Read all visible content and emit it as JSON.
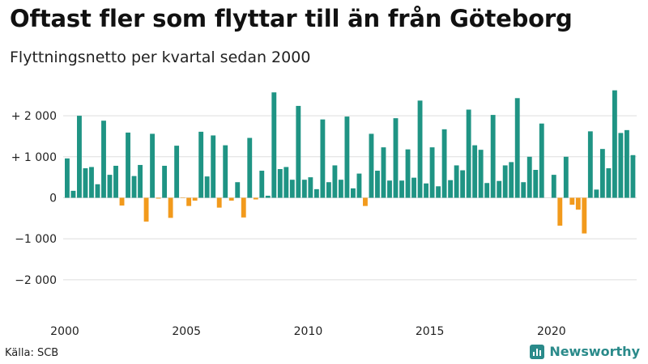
{
  "title": "Oftast fler som flyttar till än från Göteborg",
  "subtitle": "Flyttningsnetto per kvartal sedan 2000",
  "source": "Källa: SCB",
  "brand": "Newsworthy",
  "icons": {
    "brand": "bar-chart-logo-icon"
  },
  "colors": {
    "positive": "#1f9484",
    "negative": "#f29a1c",
    "grid": "#dddddd",
    "axis_text": "#222222"
  },
  "chart_data": {
    "type": "bar",
    "title": "Oftast fler som flyttar till än från Göteborg",
    "subtitle": "Flyttningsnetto per kvartal sedan 2000",
    "xlabel": "",
    "ylabel": "",
    "ylim": [
      -2500,
      2700
    ],
    "yticks": [
      {
        "value": 2000,
        "label": "+ 2 000"
      },
      {
        "value": 1000,
        "label": "+ 1 000"
      },
      {
        "value": 0,
        "label": "0"
      },
      {
        "value": -1000,
        "label": "−1 000"
      },
      {
        "value": -2000,
        "label": "−2 000"
      }
    ],
    "xticks": [
      "2000",
      "2005",
      "2010",
      "2015",
      "2020"
    ],
    "start_year": 2000,
    "grid": true,
    "legend": "none",
    "values": [
      960,
      170,
      2000,
      720,
      750,
      330,
      1880,
      560,
      780,
      -190,
      1590,
      530,
      800,
      -580,
      1560,
      -20,
      780,
      -490,
      1270,
      -10,
      -200,
      -70,
      1610,
      520,
      1520,
      -240,
      1280,
      -70,
      380,
      -480,
      1460,
      -40,
      660,
      50,
      2570,
      700,
      750,
      440,
      2240,
      440,
      500,
      210,
      1910,
      380,
      790,
      440,
      1980,
      230,
      590,
      -200,
      1560,
      660,
      1230,
      420,
      1940,
      420,
      1180,
      490,
      2370,
      350,
      1230,
      280,
      1670,
      430,
      790,
      670,
      2150,
      1280,
      1170,
      360,
      2020,
      410,
      790,
      870,
      2430,
      380,
      1000,
      680,
      1810,
      0,
      560,
      -680,
      1000,
      -170,
      -290,
      -870,
      1620,
      200,
      1190,
      720,
      2620,
      1580,
      1650,
      1040
    ]
  }
}
